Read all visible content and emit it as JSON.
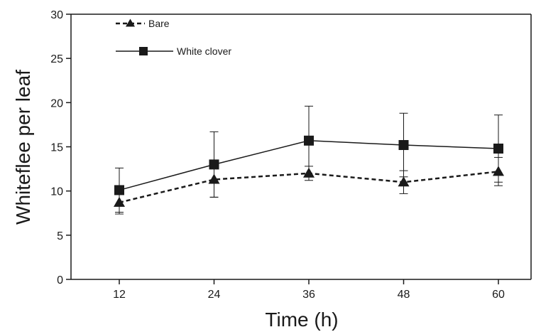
{
  "chart_data": {
    "type": "line",
    "xlabel": "Time (h)",
    "ylabel": "Whiteflee per leaf",
    "x": [
      12,
      24,
      36,
      48,
      60
    ],
    "x_tick_labels": [
      "12",
      "24",
      "36",
      "48",
      "60"
    ],
    "ylim": [
      0,
      30
    ],
    "y_ticks": [
      0,
      5,
      10,
      15,
      20,
      25,
      30
    ],
    "y_tick_labels": [
      "0",
      "5",
      "10",
      "15",
      "20",
      "25",
      "30"
    ],
    "grid": false,
    "legend_position": "top-left",
    "series": [
      {
        "name": "Bare",
        "marker": "triangle",
        "line_style": "dashed",
        "color": "#1a1a1a",
        "values": [
          8.7,
          11.3,
          12.0,
          11.0,
          12.2
        ],
        "error": [
          1.3,
          2.0,
          0.8,
          1.3,
          1.6
        ]
      },
      {
        "name": "White clover",
        "marker": "square",
        "line_style": "solid",
        "color": "#1a1a1a",
        "values": [
          10.1,
          13.0,
          15.7,
          15.2,
          14.8
        ],
        "error": [
          2.5,
          3.7,
          3.9,
          3.6,
          3.8
        ]
      }
    ]
  }
}
